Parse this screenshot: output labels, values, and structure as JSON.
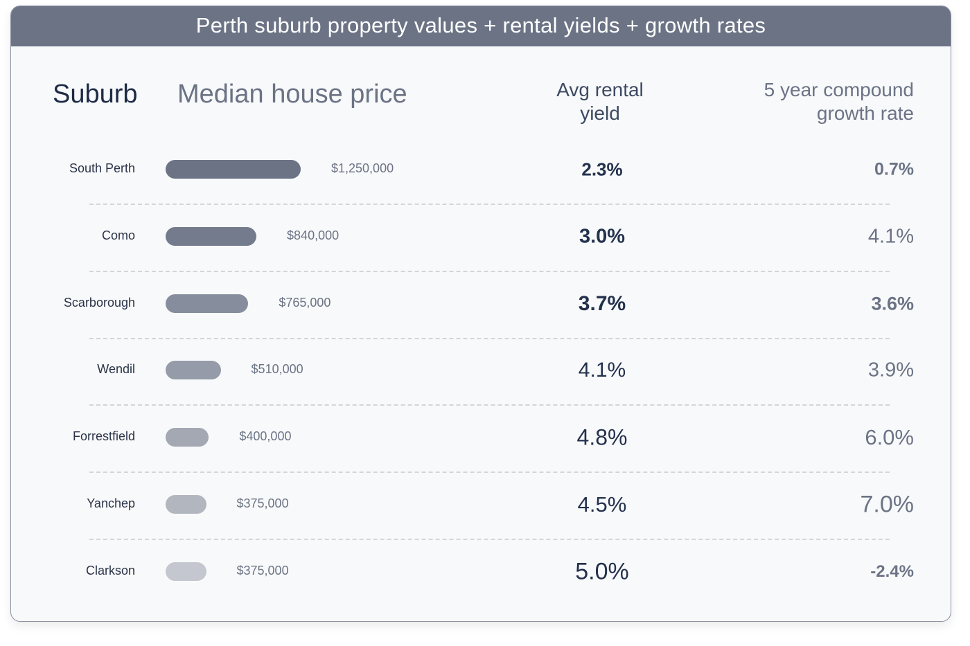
{
  "title": "Perth suburb property values + rental yields + growth rates",
  "headers": {
    "suburb": "Suburb",
    "price": "Median house price",
    "yield_line1": "Avg rental",
    "yield_line2": "yield",
    "growth_line1": "5 year compound",
    "growth_line2": "growth rate"
  },
  "chart_data": {
    "type": "bar",
    "categories": [
      "South Perth",
      "Como",
      "Scarborough",
      "Wendil",
      "Forrestfield",
      "Yanchep",
      "Clarkson"
    ],
    "values": [
      1250000,
      840000,
      765000,
      510000,
      400000,
      375000,
      375000
    ],
    "value_labels": [
      "$1,250,000",
      "$840,000",
      "$765,000",
      "$510,000",
      "$400,000",
      "$375,000",
      "$375,000"
    ],
    "rental_yield": [
      "2.3%",
      "3.0%",
      "3.7%",
      "4.1%",
      "4.8%",
      "4.5%",
      "5.0%"
    ],
    "growth_rate": [
      "0.7%",
      "4.1%",
      "3.6%",
      "3.9%",
      "6.0%",
      "7.0%",
      "-2.4%"
    ],
    "bar_colors": [
      "#6b7385",
      "#737b8c",
      "#868d9c",
      "#959ba8",
      "#a3a8b3",
      "#b2b6bf",
      "#c4c7cf"
    ],
    "grid": false
  },
  "colors": {
    "header_bg": "#6b7385",
    "background": "#f8f9fa",
    "text_dark": "#1e2b45"
  }
}
